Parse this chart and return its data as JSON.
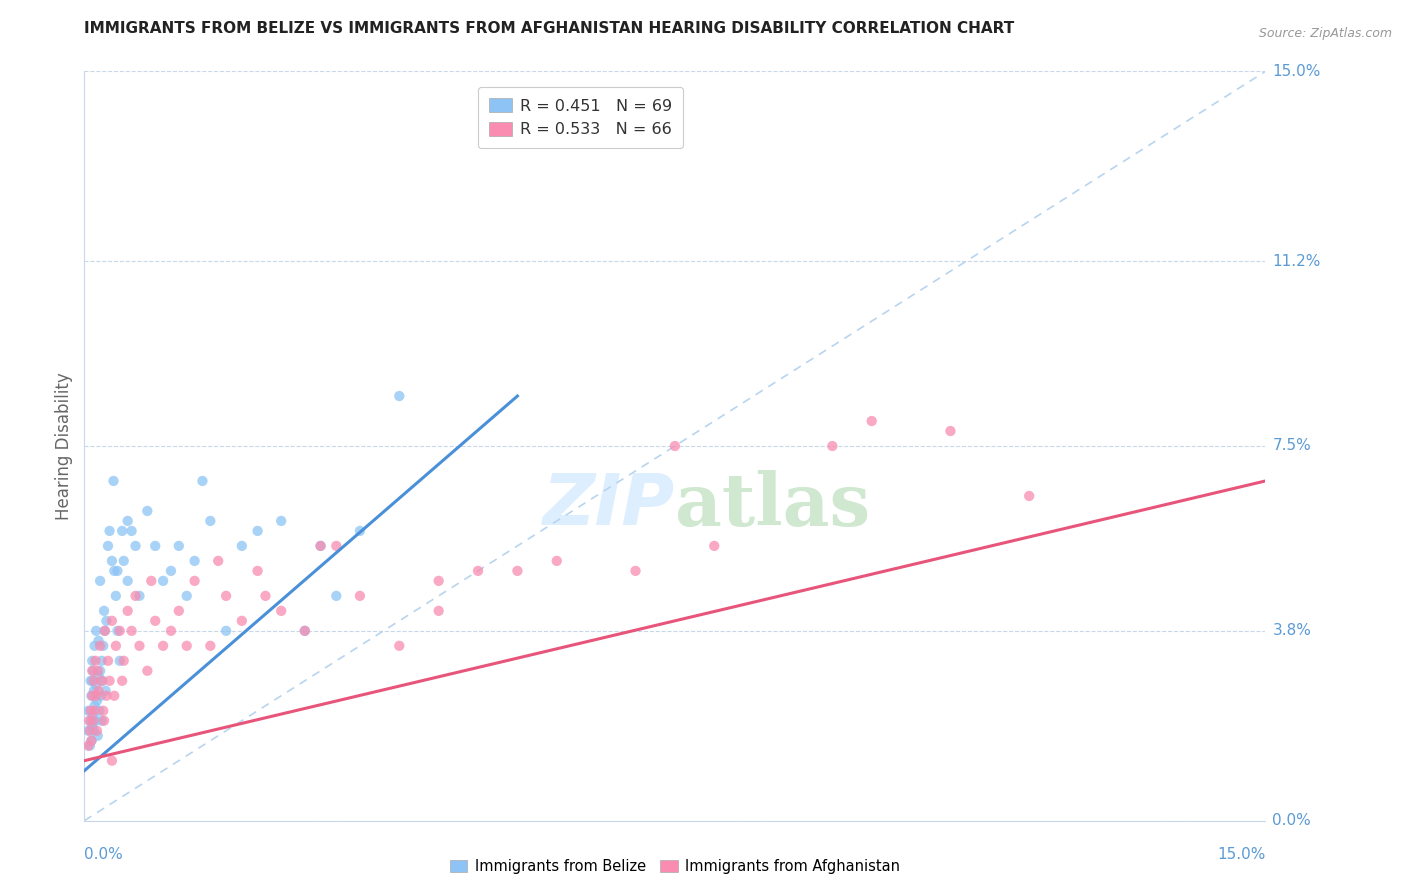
{
  "title": "IMMIGRANTS FROM BELIZE VS IMMIGRANTS FROM AFGHANISTAN HEARING DISABILITY CORRELATION CHART",
  "source": "Source: ZipAtlas.com",
  "ylabel": "Hearing Disability",
  "ytick_values": [
    0.0,
    3.8,
    7.5,
    11.2,
    15.0
  ],
  "xlim": [
    0.0,
    15.0
  ],
  "ylim": [
    0.0,
    15.0
  ],
  "legend_label1": "Immigrants from Belize",
  "legend_label2": "Immigrants from Afghanistan",
  "belize_color": "#8dc4f5",
  "afghanistan_color": "#f98cb0",
  "belize_line_color": "#4a90d9",
  "afghanistan_line_color": "#e8557a",
  "belize_dashed_color": "#b8d4ee",
  "axis_label_color": "#5b9bd5",
  "watermark_color": "#ddeeff",
  "belize_line_x0": 0.0,
  "belize_line_y0": 1.0,
  "belize_line_x1": 5.5,
  "belize_line_y1": 8.5,
  "afghanistan_line_x0": 0.0,
  "afghanistan_line_y0": 1.2,
  "afghanistan_line_x1": 15.0,
  "afghanistan_line_y1": 6.8,
  "dash_x0": 0.0,
  "dash_y0": 0.0,
  "dash_x1": 15.0,
  "dash_y1": 15.0,
  "belize_scatter_x": [
    0.05,
    0.05,
    0.07,
    0.08,
    0.08,
    0.09,
    0.09,
    0.1,
    0.1,
    0.1,
    0.11,
    0.11,
    0.12,
    0.12,
    0.13,
    0.13,
    0.14,
    0.15,
    0.15,
    0.16,
    0.17,
    0.18,
    0.18,
    0.19,
    0.2,
    0.2,
    0.21,
    0.22,
    0.23,
    0.24,
    0.25,
    0.26,
    0.27,
    0.28,
    0.3,
    0.32,
    0.35,
    0.37,
    0.4,
    0.42,
    0.45,
    0.48,
    0.5,
    0.55,
    0.6,
    0.65,
    0.7,
    0.8,
    0.9,
    1.0,
    1.1,
    1.2,
    1.4,
    1.5,
    1.8,
    2.0,
    2.2,
    2.5,
    2.8,
    3.0,
    3.2,
    3.5,
    4.0,
    1.3,
    1.6,
    0.55,
    0.42,
    0.38,
    0.22
  ],
  "belize_scatter_y": [
    1.8,
    2.2,
    1.5,
    2.8,
    2.0,
    1.6,
    2.5,
    1.9,
    2.8,
    3.2,
    2.1,
    3.0,
    1.8,
    2.6,
    2.3,
    3.5,
    2.0,
    2.7,
    3.8,
    2.4,
    1.7,
    2.9,
    3.6,
    2.2,
    4.8,
    3.0,
    2.5,
    3.2,
    2.8,
    3.5,
    4.2,
    3.8,
    2.6,
    4.0,
    5.5,
    5.8,
    5.2,
    6.8,
    4.5,
    5.0,
    3.2,
    5.8,
    5.2,
    6.0,
    5.8,
    5.5,
    4.5,
    6.2,
    5.5,
    4.8,
    5.0,
    5.5,
    5.2,
    6.8,
    3.8,
    5.5,
    5.8,
    6.0,
    3.8,
    5.5,
    4.5,
    5.8,
    8.5,
    4.5,
    6.0,
    4.8,
    3.8,
    5.0,
    2.0
  ],
  "afghanistan_scatter_x": [
    0.05,
    0.06,
    0.07,
    0.08,
    0.09,
    0.1,
    0.1,
    0.11,
    0.12,
    0.13,
    0.14,
    0.15,
    0.16,
    0.17,
    0.18,
    0.2,
    0.22,
    0.24,
    0.26,
    0.28,
    0.3,
    0.32,
    0.35,
    0.38,
    0.4,
    0.45,
    0.5,
    0.55,
    0.6,
    0.7,
    0.8,
    0.9,
    1.0,
    1.1,
    1.2,
    1.4,
    1.6,
    1.8,
    2.0,
    2.2,
    2.5,
    2.8,
    3.0,
    3.5,
    4.0,
    4.5,
    5.0,
    6.0,
    7.0,
    8.0,
    9.5,
    11.0,
    12.0,
    0.25,
    0.35,
    0.48,
    0.65,
    0.85,
    1.3,
    1.7,
    2.3,
    3.2,
    4.5,
    5.5,
    7.5,
    10.0
  ],
  "afghanistan_scatter_y": [
    1.5,
    2.0,
    1.8,
    2.2,
    1.6,
    2.5,
    3.0,
    2.0,
    2.8,
    2.2,
    3.2,
    2.5,
    1.8,
    3.0,
    2.6,
    3.5,
    2.8,
    2.2,
    3.8,
    2.5,
    3.2,
    2.8,
    4.0,
    2.5,
    3.5,
    3.8,
    3.2,
    4.2,
    3.8,
    3.5,
    3.0,
    4.0,
    3.5,
    3.8,
    4.2,
    4.8,
    3.5,
    4.5,
    4.0,
    5.0,
    4.2,
    3.8,
    5.5,
    4.5,
    3.5,
    4.8,
    5.0,
    5.2,
    5.0,
    5.5,
    7.5,
    7.8,
    6.5,
    2.0,
    1.2,
    2.8,
    4.5,
    4.8,
    3.5,
    5.2,
    4.5,
    5.5,
    4.2,
    5.0,
    7.5,
    8.0
  ]
}
